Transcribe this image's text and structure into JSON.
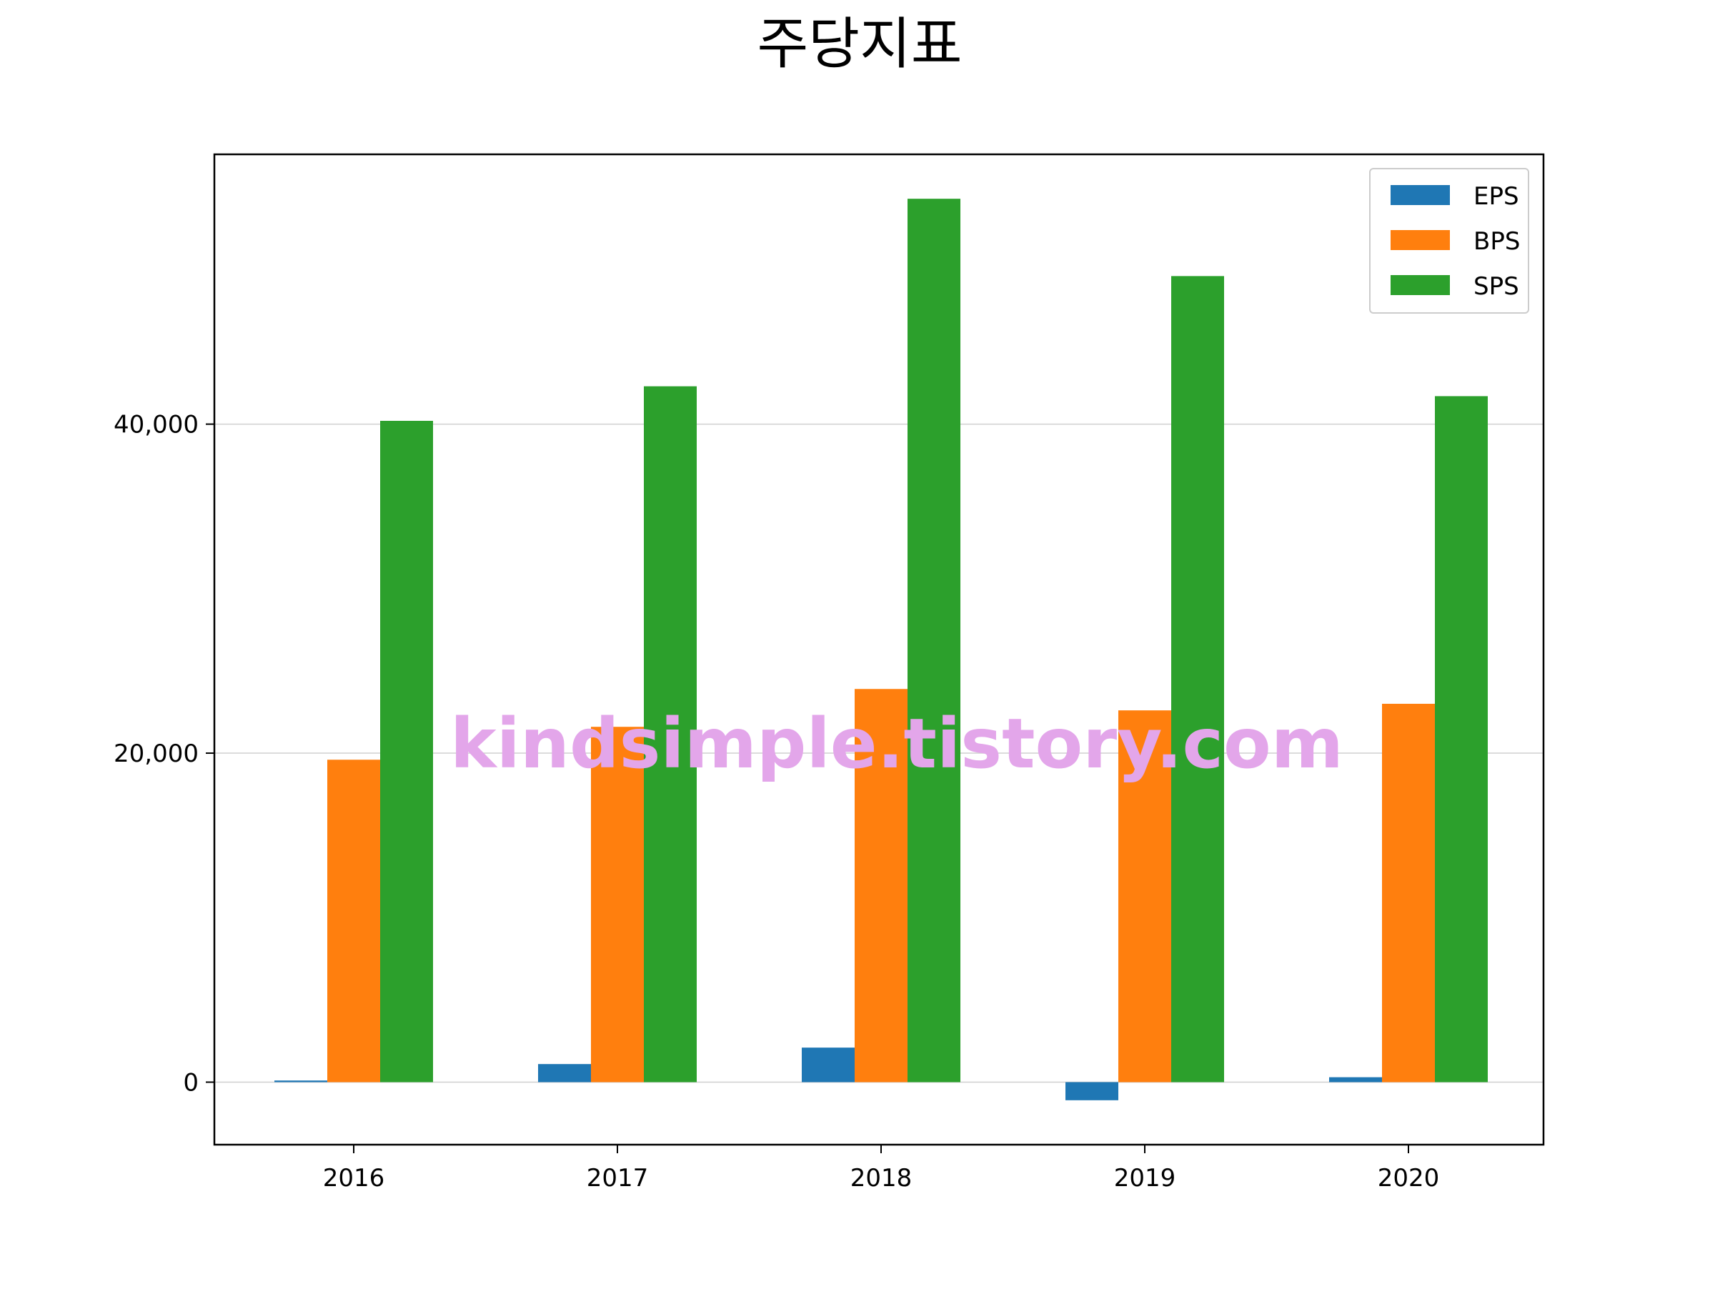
{
  "chart_data": {
    "type": "bar",
    "title": "주당지표",
    "xlabel": "",
    "ylabel": "",
    "categories": [
      "2016",
      "2017",
      "2018",
      "2019",
      "2020"
    ],
    "series": [
      {
        "name": "EPS",
        "color": "#1f77b4",
        "values": [
          100,
          1100,
          2100,
          -1100,
          300
        ]
      },
      {
        "name": "BPS",
        "color": "#ff7f0e",
        "values": [
          19600,
          21600,
          23900,
          22600,
          23000
        ]
      },
      {
        "name": "SPS",
        "color": "#2ca02c",
        "values": [
          40200,
          42300,
          53700,
          49000,
          41700
        ]
      }
    ],
    "ylim": [
      -3800,
      56400
    ],
    "yticks": [
      0,
      20000,
      40000
    ],
    "ytick_labels": [
      "0",
      "20,000",
      "40,000"
    ],
    "grid": "horizontal",
    "legend_position": "upper right",
    "watermark": "kindsimple.tistory.com"
  }
}
